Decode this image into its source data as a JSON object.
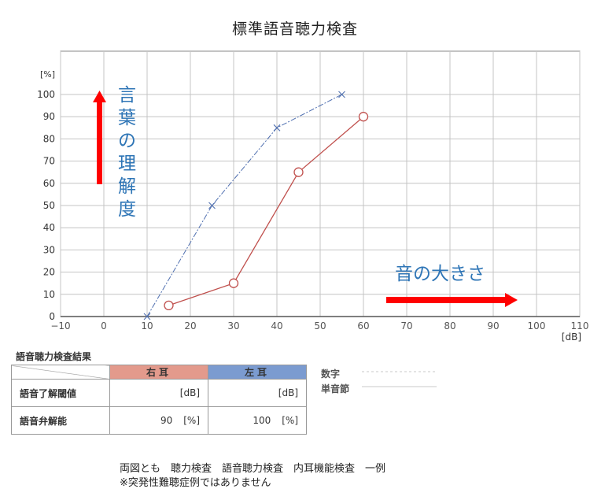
{
  "title": "標準語音聴力検査",
  "chart_data": {
    "type": "line",
    "xlim": [
      -10,
      110
    ],
    "ylim": [
      0,
      100
    ],
    "x_ticks": [
      -10,
      0,
      10,
      20,
      30,
      40,
      50,
      60,
      70,
      80,
      90,
      100,
      110
    ],
    "y_ticks": [
      0,
      10,
      20,
      30,
      40,
      50,
      60,
      70,
      80,
      90,
      100
    ],
    "x_tick_labels": [
      "−10",
      "0",
      "10",
      "20",
      "30",
      "40",
      "50",
      "60",
      "70",
      "80",
      "90",
      "100",
      "110"
    ],
    "xlabel": "[dB]",
    "ylabel": "[%]",
    "grid": true,
    "series": [
      {
        "ear": "right",
        "marker": "circle",
        "color": "#c0504d",
        "points": [
          [
            15,
            5
          ],
          [
            30,
            15
          ],
          [
            45,
            65
          ],
          [
            60,
            90
          ]
        ]
      },
      {
        "ear": "left",
        "marker": "cross",
        "color": "#4f6fb0",
        "points": [
          [
            10,
            0
          ],
          [
            25,
            50
          ],
          [
            40,
            85
          ],
          [
            55,
            100
          ]
        ]
      }
    ],
    "annotations": {
      "y_arrow_text": [
        "言",
        "葉",
        "の",
        "理",
        "解",
        "度"
      ],
      "x_arrow_text": "音の大きさ",
      "arrow_color": "#ff0000",
      "text_color": "#2e75b6"
    }
  },
  "results": {
    "heading": "語音聴力検査結果",
    "right_ear": "右耳",
    "left_ear": "左耳",
    "rows": [
      {
        "label": "語音了解閾値",
        "right": "[dB]",
        "left": "[dB]"
      },
      {
        "label": "語音弁解能",
        "right_value": "90",
        "right_unit": "[%]",
        "left_value": "100",
        "left_unit": "[%]"
      }
    ]
  },
  "legend": {
    "digits": "数字",
    "syllable": "単音節"
  },
  "footer": {
    "line1": "両図とも　聴力検査　語音聴力検査　内耳機能検査　一例",
    "line2": "※突発性難聴症例ではありません"
  }
}
